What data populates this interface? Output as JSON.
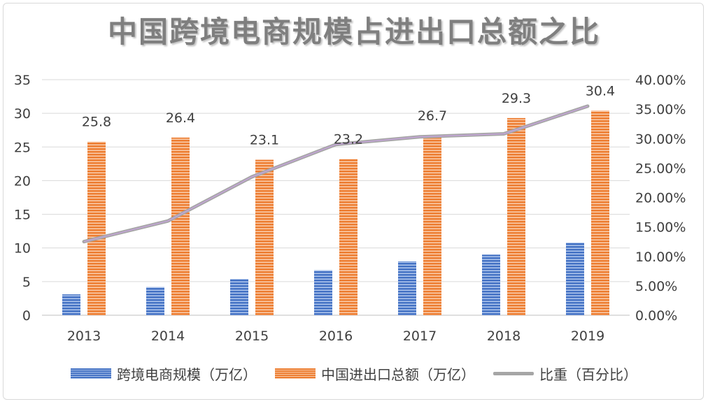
{
  "chart_data": {
    "type": "bar",
    "title": "中国跨境电商规模占进出口总额之比",
    "categories": [
      "2013",
      "2014",
      "2015",
      "2016",
      "2017",
      "2018",
      "2019"
    ],
    "series": [
      {
        "name": "跨境电商规模（万亿）",
        "type": "bar",
        "axis": "left",
        "values": [
          3.1,
          4.2,
          5.4,
          6.7,
          8.0,
          9.0,
          10.8
        ]
      },
      {
        "name": "中国进出口总额（万亿）",
        "type": "bar",
        "axis": "left",
        "values": [
          25.8,
          26.4,
          23.1,
          23.2,
          26.7,
          29.3,
          30.4
        ]
      },
      {
        "name": "比重（百分比）",
        "type": "line",
        "axis": "right",
        "values": [
          12.5,
          16.0,
          23.5,
          29.0,
          30.3,
          30.8,
          35.5
        ]
      }
    ],
    "data_labels": [
      "25.8",
      "26.4",
      "23.1",
      "23.2",
      "26.7",
      "29.3",
      "30.4"
    ],
    "y_left": {
      "min": 0,
      "max": 35,
      "step": 5,
      "tick_labels": [
        "0",
        "5",
        "10",
        "15",
        "20",
        "25",
        "30",
        "35"
      ]
    },
    "y_right": {
      "min": 0,
      "max": 40,
      "step": 5,
      "tick_labels": [
        "0.00%",
        "5.00%",
        "10.00%",
        "15.00%",
        "20.00%",
        "25.00%",
        "30.00%",
        "35.00%",
        "40.00%"
      ]
    },
    "grid": true,
    "legend_position": "bottom",
    "colors": {
      "bar1": "#4472c4",
      "bar2": "#ed7d31",
      "line": "#a6a6a6",
      "line_center": "#c9a4e0",
      "grid": "#d9d9d9",
      "text": "#404040"
    }
  }
}
